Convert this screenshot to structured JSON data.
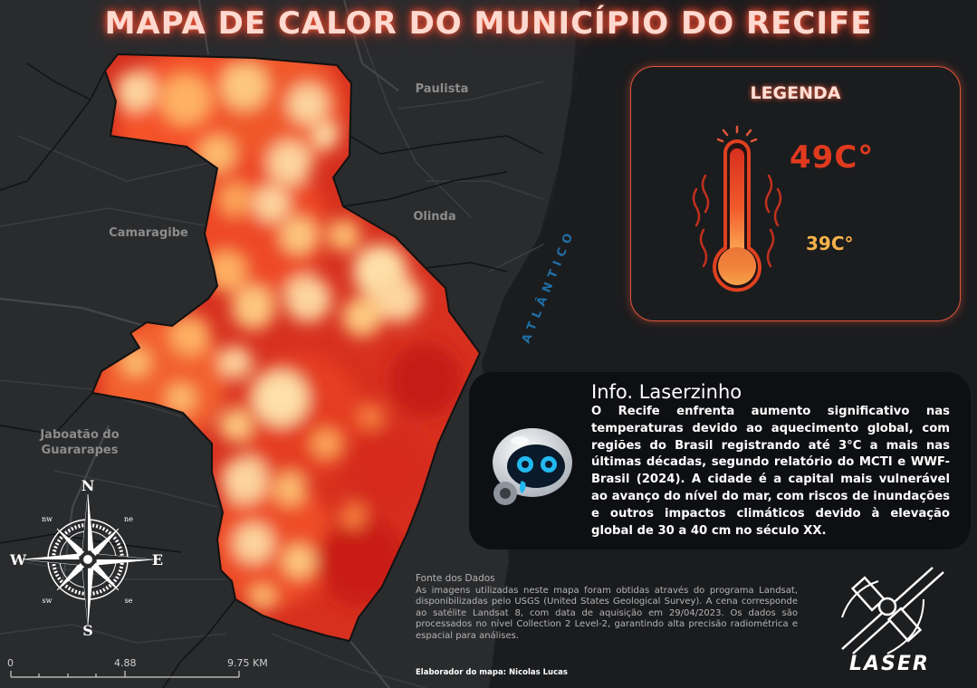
{
  "title": "MAPA DE CALOR DO MUNICÍPIO DO RECIFE",
  "places": {
    "paulista": "Paulista",
    "olinda": "Olinda",
    "camaragibe": "Camaragibe",
    "jaboatao_line1": "Jaboatão do",
    "jaboatao_line2": "Guararapes",
    "ocean": "ATLÂNTICO"
  },
  "legend": {
    "title": "LEGENDA",
    "max_label": "49C°",
    "min_label": "39C°",
    "color_high": "#d7301f",
    "color_low": "#fdd49e"
  },
  "info": {
    "title": "Info. Laserzinho",
    "text": "O Recife enfrenta aumento significativo nas temperaturas devido ao aquecimento global, com regiões do Brasil registrando até 3°C a mais nas últimas décadas, segundo relatório do MCTI e WWF-Brasil (2024). A cidade é a capital mais vulnerável ao avanço do nível do mar, com riscos de inundações e outros impactos climáticos devido à elevação global de 30 a 40 cm no século XX.",
    "icon": "robot-mascot-icon"
  },
  "source": {
    "title": "Fonte dos Dados",
    "text": "As imagens utilizadas neste mapa foram obtidas através do programa Landsat, disponibilizadas pelo USGS (United States Geological Survey). A cena corresponde ao satélite Landsat 8, com data de aquisição em 29/04/2023. Os dados são processados no nível Collection 2 Level-2, garantindo alta precisão radiométrica e espacial para análises."
  },
  "author": "Elaborador do mapa: Nicolas Lucas",
  "logo_text": "LASER",
  "compass": {
    "n": "N",
    "s": "S",
    "e": "E",
    "w": "W",
    "ne": "ne",
    "nw": "nw",
    "se": "se",
    "sw": "sw"
  },
  "scale": {
    "tick0": "0",
    "tick1": "4.88",
    "tick2": "9.75 KM"
  },
  "colors": {
    "background": "#1e1f21",
    "accent": "#e0563a",
    "ocean_label": "#1f6fa6"
  }
}
